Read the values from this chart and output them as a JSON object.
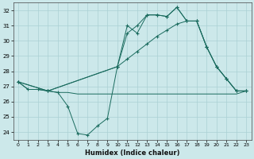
{
  "xlabel": "Humidex (Indice chaleur)",
  "background_color": "#cce8ea",
  "grid_color": "#aad0d4",
  "line_color": "#1a6b5e",
  "xlim": [
    -0.5,
    23.5
  ],
  "ylim": [
    23.5,
    32.5
  ],
  "yticks": [
    24,
    25,
    26,
    27,
    28,
    29,
    30,
    31,
    32
  ],
  "xticks": [
    0,
    1,
    2,
    3,
    4,
    5,
    6,
    7,
    8,
    9,
    10,
    11,
    12,
    13,
    14,
    15,
    16,
    17,
    18,
    19,
    20,
    21,
    22,
    23
  ],
  "series": [
    {
      "x": [
        0,
        1,
        2,
        3,
        4,
        5,
        6,
        7,
        8,
        9,
        10,
        11,
        12,
        13,
        14,
        15,
        16,
        17,
        18,
        19,
        20,
        21,
        22,
        23
      ],
      "y": [
        27.3,
        26.8,
        26.8,
        26.7,
        26.6,
        26.6,
        26.5,
        26.5,
        26.5,
        26.5,
        26.5,
        26.5,
        26.5,
        26.5,
        26.5,
        26.5,
        26.5,
        26.5,
        26.5,
        26.5,
        26.5,
        26.5,
        26.5,
        26.7
      ],
      "marker": false
    },
    {
      "x": [
        0,
        1,
        2,
        3,
        4,
        5,
        6,
        7,
        8,
        9,
        10,
        11,
        12,
        13,
        14,
        15,
        16,
        17,
        18,
        19,
        20,
        21,
        22,
        23
      ],
      "y": [
        27.3,
        26.8,
        26.8,
        26.7,
        26.6,
        25.7,
        23.9,
        23.8,
        24.4,
        24.9,
        28.3,
        31.0,
        30.5,
        31.7,
        31.7,
        31.6,
        32.2,
        31.3,
        31.3,
        29.6,
        28.3,
        27.5,
        26.7,
        26.7
      ],
      "marker": true
    },
    {
      "x": [
        0,
        3,
        10,
        11,
        12,
        13,
        14,
        15,
        16,
        17,
        18,
        19,
        20,
        21,
        22,
        23
      ],
      "y": [
        27.3,
        26.7,
        28.3,
        28.8,
        29.3,
        29.8,
        30.3,
        30.7,
        31.1,
        31.3,
        31.3,
        29.6,
        28.3,
        27.5,
        26.7,
        26.7
      ],
      "marker": true
    },
    {
      "x": [
        0,
        3,
        10,
        11,
        12,
        13,
        14,
        15,
        16,
        17,
        18,
        19,
        20,
        21,
        22,
        23
      ],
      "y": [
        27.3,
        26.7,
        28.3,
        30.5,
        31.0,
        31.7,
        31.7,
        31.6,
        32.2,
        31.3,
        31.3,
        29.6,
        28.3,
        27.5,
        26.7,
        26.7
      ],
      "marker": true
    }
  ]
}
